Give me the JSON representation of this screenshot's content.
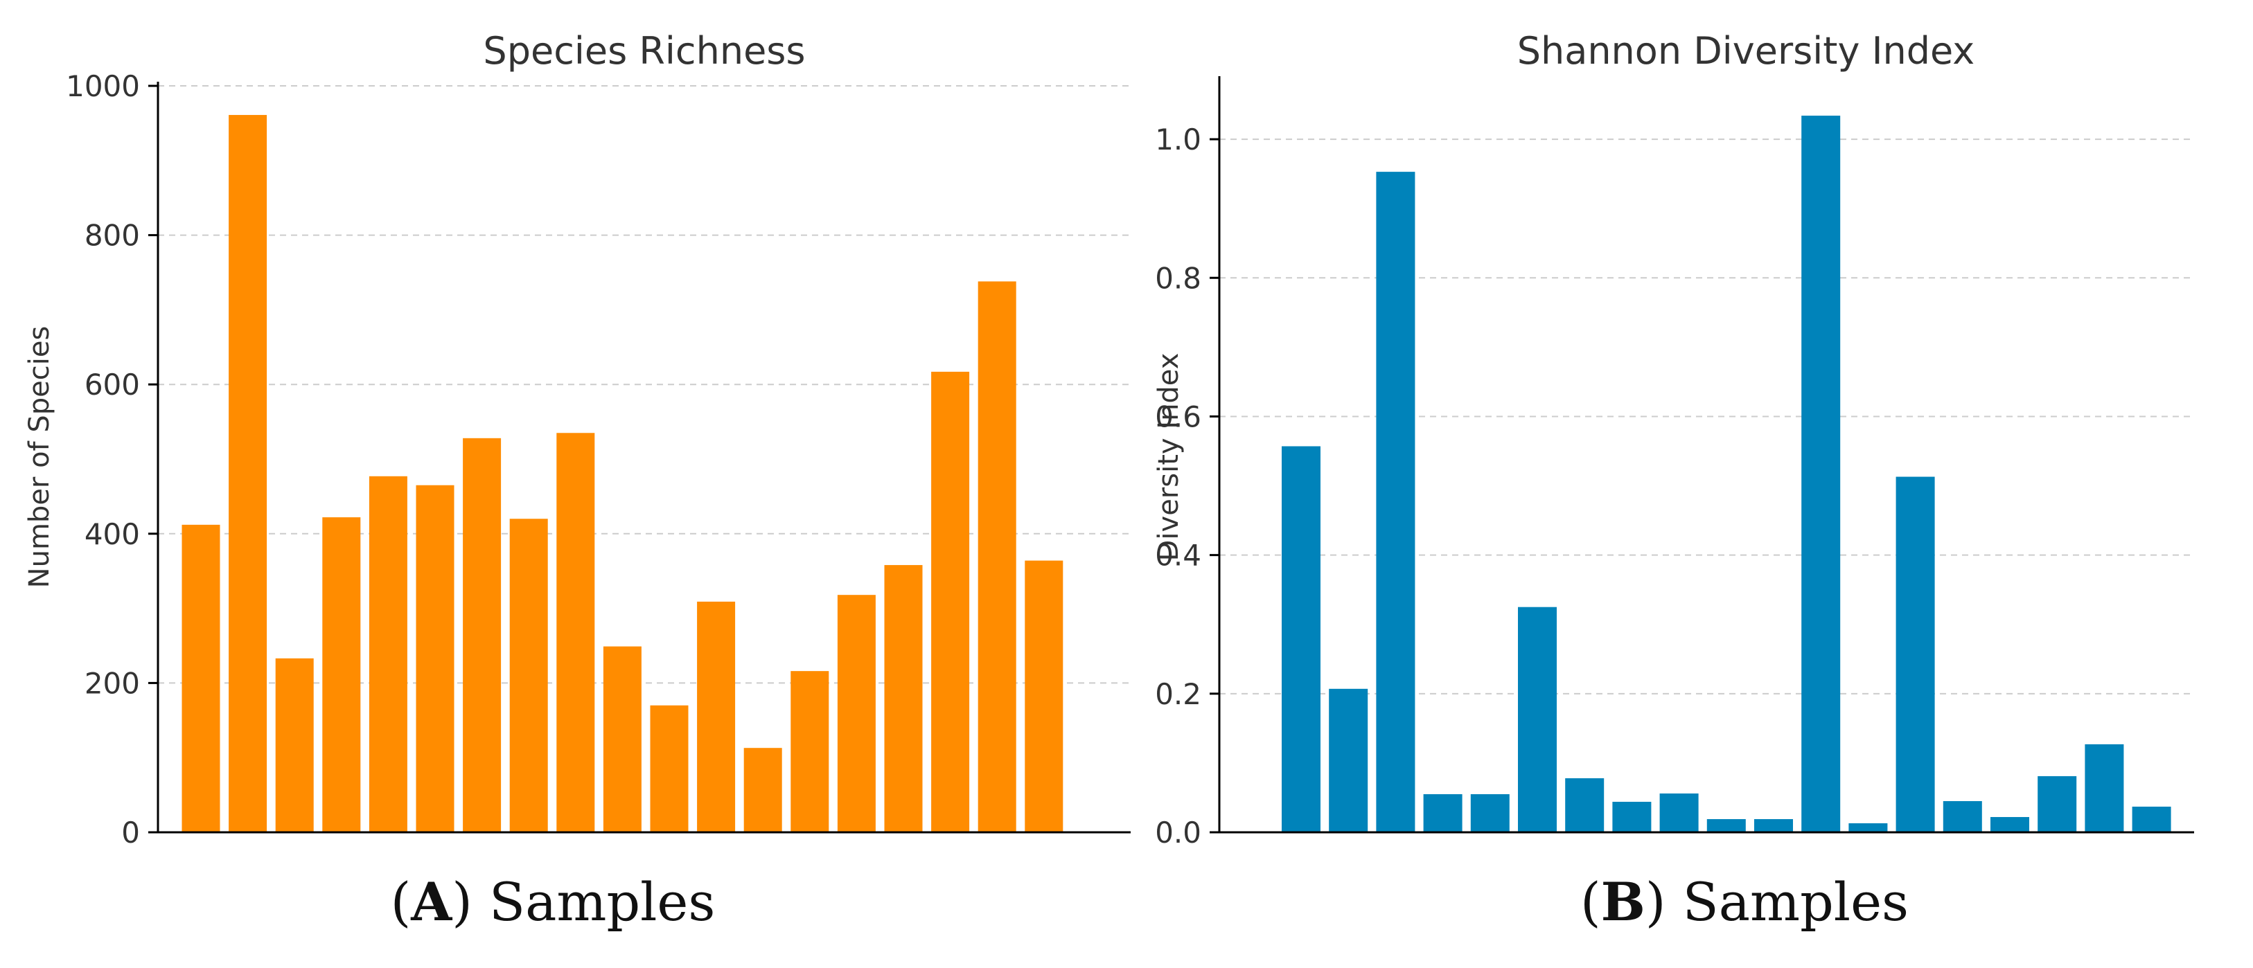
{
  "colors": {
    "richness_bar": "#FF8C00",
    "shannon_bar": "#0083BA",
    "axis": "#000000",
    "grid": "#CCCCCC",
    "text": "#333333"
  },
  "captions": [
    {
      "open": "(",
      "letter": "A",
      "close": ")",
      "text": " Samples"
    },
    {
      "open": "(",
      "letter": "B",
      "close": ")",
      "text": " Samples"
    }
  ],
  "chart_data": [
    {
      "type": "bar",
      "title": "Species Richness",
      "xlabel": "",
      "ylabel": "Number of Species",
      "ylim": [
        0,
        1000
      ],
      "yticks": [
        0,
        200,
        400,
        600,
        800,
        1000
      ],
      "ytick_labels": [
        "0",
        "200",
        "400",
        "600",
        "800",
        "1000"
      ],
      "grid": "y-dashed",
      "values": [
        412,
        961,
        233,
        422,
        477,
        465,
        528,
        420,
        535,
        249,
        170,
        309,
        113,
        216,
        318,
        358,
        617,
        738,
        364
      ]
    },
    {
      "type": "bar",
      "title": "Shannon Diversity Index",
      "xlabel": "",
      "ylabel": "Diversity Index",
      "ylim": [
        0,
        1.085
      ],
      "yticks": [
        0,
        0.2,
        0.4,
        0.6,
        0.8,
        1.0
      ],
      "ytick_labels": [
        "0.0",
        "0.2",
        "0.4",
        "0.6",
        "0.8",
        "1.0"
      ],
      "grid": "y-dashed",
      "values": [
        0.557,
        0.207,
        0.953,
        0.055,
        0.055,
        0.325,
        0.078,
        0.044,
        0.056,
        0.019,
        0.019,
        1.034,
        0.013,
        0.513,
        0.045,
        0.022,
        0.081,
        0.127,
        0.037
      ]
    }
  ]
}
